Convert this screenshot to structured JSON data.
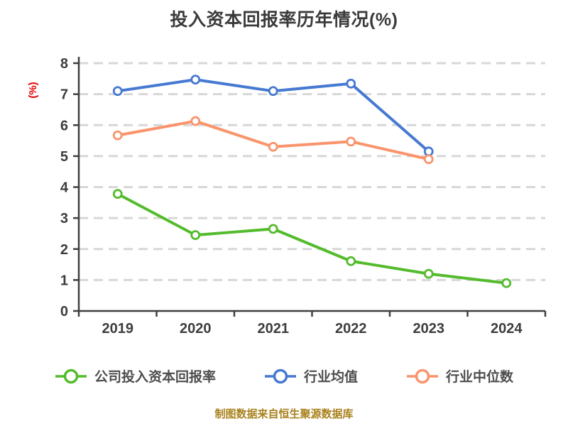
{
  "title": "投入资本回报率历年情况(%)",
  "source_note": "制图数据来自恒生聚源数据库",
  "colors": {
    "background": "#ffffff",
    "title": "#3a3a3a",
    "axis": "#3f3f3f",
    "tick_label": "#3d3d3d",
    "grid": "#d7d7d7",
    "ylabel": "#e60000",
    "legend_text": "#4d4d4d",
    "source_note": "#a9821e"
  },
  "chart_data": {
    "type": "line",
    "title": "投入资本回报率历年情况(%)",
    "xlabel": "",
    "ylabel": "(%)",
    "categories": [
      "2019",
      "2020",
      "2021",
      "2022",
      "2023",
      "2024"
    ],
    "ylim": [
      0,
      8
    ],
    "ytick_step": 1,
    "grid": "horizontal-dashed",
    "legend_position": "bottom",
    "marker": "circle-white-fill",
    "series": [
      {
        "name": "公司投入资本回报率",
        "color": "#54bb2c",
        "values": [
          3.78,
          2.45,
          2.65,
          1.61,
          1.2,
          0.9
        ]
      },
      {
        "name": "行业均值",
        "color": "#4679d2",
        "values": [
          7.1,
          7.47,
          7.1,
          7.34,
          5.15,
          null
        ]
      },
      {
        "name": "行业中位数",
        "color": "#f9946c",
        "values": [
          5.67,
          6.13,
          5.3,
          5.47,
          4.9,
          null
        ]
      }
    ]
  }
}
